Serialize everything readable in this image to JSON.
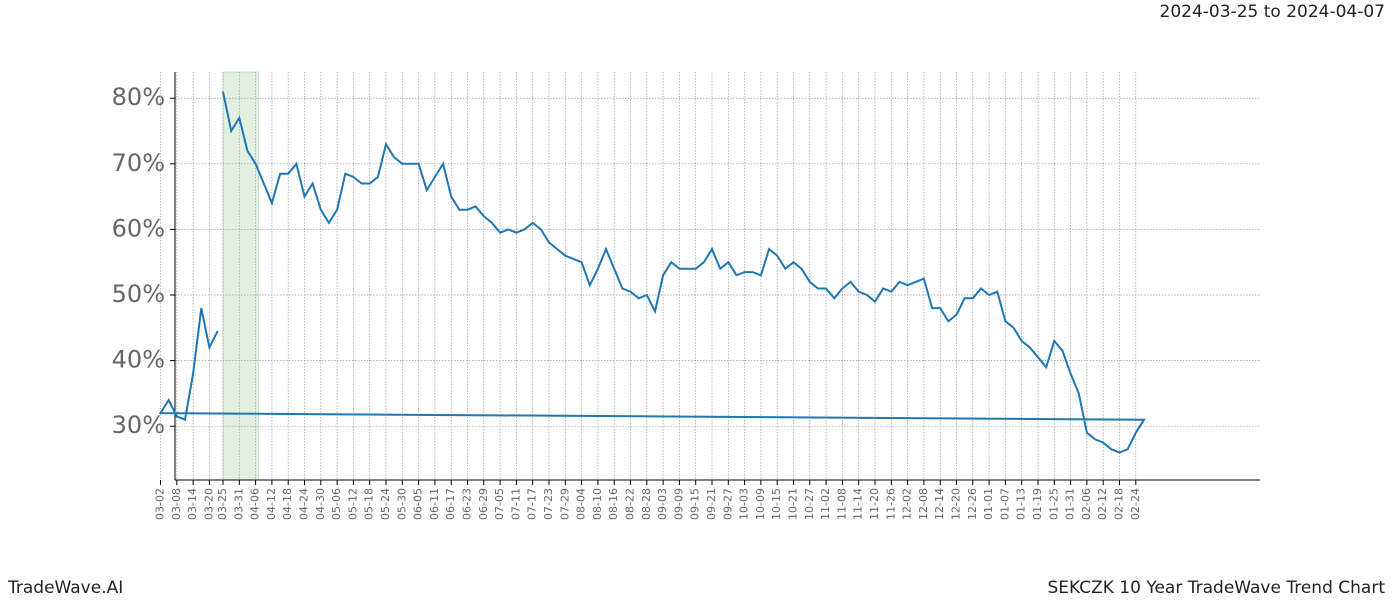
{
  "chart_data": {
    "type": "line",
    "range_label": "2024-03-25 to 2024-04-07",
    "brand": "TradeWave.AI",
    "footer_title": "SEKCZK 10 Year TradeWave Trend Chart",
    "highlight_span": [
      "03-25",
      "04-07"
    ],
    "highlight_color": "#d6ead6",
    "grid": true,
    "ylim": [
      21.8,
      84
    ],
    "yticks": [
      {
        "value": 30,
        "label": "30%"
      },
      {
        "value": 40,
        "label": "40%"
      },
      {
        "value": 50,
        "label": "50%"
      },
      {
        "value": 60,
        "label": "60%"
      },
      {
        "value": 70,
        "label": "70%"
      },
      {
        "value": 80,
        "label": "80%"
      }
    ],
    "xticks": [
      "03-25",
      "03-31",
      "04-06",
      "04-12",
      "04-18",
      "04-24",
      "04-30",
      "05-06",
      "05-12",
      "05-18",
      "05-24",
      "05-30",
      "06-05",
      "06-11",
      "06-17",
      "06-23",
      "06-29",
      "07-05",
      "07-11",
      "07-17",
      "07-23",
      "07-29",
      "08-04",
      "08-10",
      "08-16",
      "08-22",
      "08-28",
      "09-03",
      "09-09",
      "09-15",
      "09-21",
      "09-27",
      "10-03",
      "10-09",
      "10-15",
      "10-21",
      "10-27",
      "11-02",
      "11-08",
      "11-14",
      "11-20",
      "11-26",
      "12-02",
      "12-08",
      "12-14",
      "12-20",
      "12-26",
      "01-01",
      "01-07",
      "01-13",
      "01-19",
      "01-25",
      "01-31",
      "02-06",
      "02-12",
      "02-18",
      "02-24",
      "03-02",
      "03-08",
      "03-14",
      "03-20"
    ],
    "x": [
      "03-25",
      "03-28",
      "03-31",
      "04-03",
      "04-06",
      "04-09",
      "04-12",
      "04-15",
      "04-18",
      "04-21",
      "04-24",
      "04-27",
      "04-30",
      "05-03",
      "05-06",
      "05-09",
      "05-12",
      "05-15",
      "05-18",
      "05-21",
      "05-24",
      "05-27",
      "05-30",
      "06-02",
      "06-05",
      "06-08",
      "06-11",
      "06-14",
      "06-17",
      "06-20",
      "06-23",
      "06-26",
      "06-29",
      "07-02",
      "07-05",
      "07-08",
      "07-11",
      "07-14",
      "07-17",
      "07-20",
      "07-23",
      "07-26",
      "07-29",
      "08-01",
      "08-04",
      "08-07",
      "08-10",
      "08-13",
      "08-16",
      "08-19",
      "08-22",
      "08-25",
      "08-28",
      "08-31",
      "09-03",
      "09-06",
      "09-09",
      "09-12",
      "09-15",
      "09-18",
      "09-21",
      "09-24",
      "09-27",
      "09-30",
      "10-03",
      "10-06",
      "10-09",
      "10-12",
      "10-15",
      "10-18",
      "10-21",
      "10-24",
      "10-27",
      "10-30",
      "11-02",
      "11-05",
      "11-08",
      "11-11",
      "11-14",
      "11-17",
      "11-20",
      "11-23",
      "11-26",
      "11-29",
      "12-02",
      "12-05",
      "12-08",
      "12-11",
      "12-14",
      "12-17",
      "12-20",
      "12-23",
      "12-26",
      "12-29",
      "01-01",
      "01-04",
      "01-07",
      "01-10",
      "01-13",
      "01-16",
      "01-19",
      "01-22",
      "01-25",
      "01-28",
      "01-31",
      "02-03",
      "02-06",
      "02-09",
      "02-12",
      "02-15",
      "02-18",
      "02-21",
      "02-24",
      "02-27",
      "03-02",
      "03-05",
      "03-08",
      "03-11",
      "03-14",
      "03-17",
      "03-20",
      "03-23"
    ],
    "series": [
      {
        "color": "#1f77b4",
        "values": [
          81,
          75,
          77,
          72,
          70,
          67,
          64,
          68.5,
          68.5,
          70,
          65,
          67,
          63,
          61,
          63,
          68.5,
          68,
          67,
          67,
          68,
          73,
          71,
          70,
          70,
          70,
          66,
          68,
          70,
          65,
          63,
          63,
          63.5,
          62,
          61,
          59.5,
          60,
          59.5,
          60,
          61,
          60,
          58,
          57,
          56,
          55.5,
          55,
          51.5,
          54,
          57,
          54,
          51,
          50.5,
          49.5,
          50,
          47.5,
          53,
          55,
          54,
          54,
          54,
          55,
          57,
          54,
          55,
          53,
          53.5,
          53.5,
          53,
          57,
          56,
          54,
          55,
          54,
          52,
          51,
          51,
          49.5,
          51,
          52,
          50.5,
          50,
          49,
          51,
          50.5,
          52,
          51.5,
          52,
          52.5,
          48,
          48,
          46,
          47,
          49.5,
          49.5,
          51,
          50,
          50.5,
          46,
          45,
          43,
          42,
          40.5,
          39,
          43,
          41.5,
          38,
          35,
          29,
          28,
          27.5,
          26.5,
          26,
          26.5,
          29,
          31,
          32,
          34,
          31.5,
          31,
          38,
          48,
          42,
          44.5
        ]
      }
    ]
  }
}
